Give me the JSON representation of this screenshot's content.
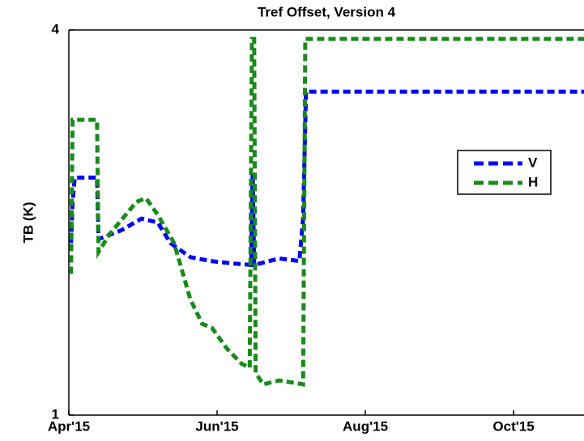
{
  "chart_data": {
    "type": "line",
    "title": "Tref Offset, Version 4",
    "ylabel": "TB (K)",
    "xlim": [
      0,
      6.95
    ],
    "xticks": [
      {
        "value": 0,
        "label": "Apr'15"
      },
      {
        "value": 2,
        "label": "Jun'15"
      },
      {
        "value": 4,
        "label": "Aug'15"
      },
      {
        "value": 6,
        "label": "Oct'15"
      }
    ],
    "ylim": [
      1,
      4
    ],
    "yticks": [
      1,
      4
    ],
    "legend": "upper right",
    "series": [
      {
        "name": "V",
        "color": "#0000ff",
        "x": [
          0.03,
          0.05,
          0.08,
          0.38,
          0.4,
          0.71,
          0.98,
          1.2,
          1.37,
          1.64,
          1.91,
          2.24,
          2.46,
          2.48,
          2.5,
          2.84,
          3.11,
          3.16,
          3.2,
          6.95
        ],
        "values": [
          2.34,
          2.66,
          2.85,
          2.85,
          2.37,
          2.44,
          2.53,
          2.5,
          2.34,
          2.23,
          2.2,
          2.18,
          2.17,
          2.88,
          2.17,
          2.22,
          2.2,
          2.53,
          3.52,
          3.52
        ]
      },
      {
        "name": "H",
        "color": "#1a8a1a",
        "x": [
          0.03,
          0.05,
          0.38,
          0.4,
          0.55,
          0.71,
          0.91,
          1.04,
          1.2,
          1.42,
          1.64,
          1.8,
          1.93,
          2.13,
          2.33,
          2.44,
          2.47,
          2.5,
          2.52,
          2.62,
          2.84,
          3.16,
          3.19,
          6.95
        ],
        "values": [
          2.1,
          3.3,
          3.3,
          2.27,
          2.41,
          2.52,
          2.66,
          2.69,
          2.56,
          2.34,
          1.9,
          1.71,
          1.68,
          1.52,
          1.4,
          1.37,
          3.93,
          3.93,
          1.33,
          1.24,
          1.27,
          1.24,
          3.93,
          3.93
        ]
      }
    ]
  }
}
